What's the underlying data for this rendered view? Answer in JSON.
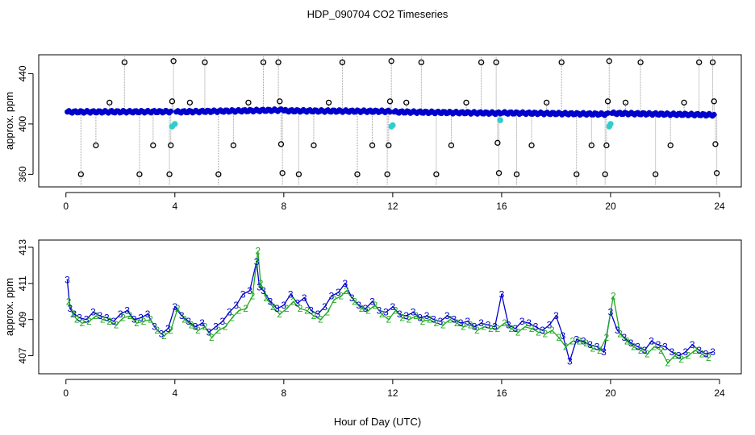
{
  "title": "HDP_090704  CO2 Timeseries",
  "xlabel": "Hour of Day (UTC)",
  "chart_data": [
    {
      "type": "scatter",
      "ylabel": "approx. ppm",
      "xlim": [
        -1,
        24.8
      ],
      "ylim": [
        350,
        455
      ],
      "xticks": [
        0,
        4,
        8,
        12,
        16,
        20,
        24
      ],
      "yticks": [
        360,
        400,
        440
      ],
      "grid": false,
      "colors": {
        "main": "#0000cc",
        "cal": "#33cccc",
        "outlier": "#000000",
        "drop": "#999999"
      },
      "main_series": [
        {
          "start": 0.05,
          "end": 3.85,
          "y0": 409.6,
          "y1": 409.8
        },
        {
          "start": 4.05,
          "end": 7.9,
          "y0": 409.6,
          "y1": 411.0
        },
        {
          "start": 8.0,
          "end": 11.9,
          "y0": 410.5,
          "y1": 410.0
        },
        {
          "start": 12.05,
          "end": 15.95,
          "y0": 409.6,
          "y1": 408.6
        },
        {
          "start": 16.05,
          "end": 19.9,
          "y0": 408.8,
          "y1": 407.8
        },
        {
          "start": 20.05,
          "end": 23.8,
          "y0": 408.5,
          "y1": 407.2
        }
      ],
      "cal_points": [
        {
          "x": 3.9,
          "y": 398
        },
        {
          "x": 4.0,
          "y": 400
        },
        {
          "x": 11.95,
          "y": 398
        },
        {
          "x": 12.0,
          "y": 399
        },
        {
          "x": 15.95,
          "y": 403
        },
        {
          "x": 19.95,
          "y": 398
        },
        {
          "x": 20.0,
          "y": 400
        }
      ],
      "outliers": [
        {
          "x": 0.55,
          "y": 360
        },
        {
          "x": 1.1,
          "y": 383
        },
        {
          "x": 1.6,
          "y": 417
        },
        {
          "x": 2.15,
          "y": 449
        },
        {
          "x": 2.7,
          "y": 360
        },
        {
          "x": 3.2,
          "y": 383
        },
        {
          "x": 3.8,
          "y": 360
        },
        {
          "x": 3.85,
          "y": 383
        },
        {
          "x": 3.9,
          "y": 418
        },
        {
          "x": 3.95,
          "y": 450
        },
        {
          "x": 4.55,
          "y": 417
        },
        {
          "x": 5.1,
          "y": 449
        },
        {
          "x": 5.6,
          "y": 360
        },
        {
          "x": 6.15,
          "y": 383
        },
        {
          "x": 6.7,
          "y": 417
        },
        {
          "x": 7.25,
          "y": 449
        },
        {
          "x": 7.8,
          "y": 449
        },
        {
          "x": 7.85,
          "y": 418
        },
        {
          "x": 7.9,
          "y": 384
        },
        {
          "x": 7.95,
          "y": 361
        },
        {
          "x": 8.55,
          "y": 360
        },
        {
          "x": 9.1,
          "y": 383
        },
        {
          "x": 9.65,
          "y": 417
        },
        {
          "x": 10.15,
          "y": 449
        },
        {
          "x": 10.7,
          "y": 360
        },
        {
          "x": 11.25,
          "y": 383
        },
        {
          "x": 11.8,
          "y": 360
        },
        {
          "x": 11.85,
          "y": 383
        },
        {
          "x": 11.9,
          "y": 418
        },
        {
          "x": 11.95,
          "y": 450
        },
        {
          "x": 12.5,
          "y": 417
        },
        {
          "x": 13.05,
          "y": 449
        },
        {
          "x": 13.6,
          "y": 360
        },
        {
          "x": 14.15,
          "y": 383
        },
        {
          "x": 14.7,
          "y": 417
        },
        {
          "x": 15.25,
          "y": 449
        },
        {
          "x": 15.8,
          "y": 449
        },
        {
          "x": 15.85,
          "y": 385
        },
        {
          "x": 15.9,
          "y": 361
        },
        {
          "x": 16.55,
          "y": 360
        },
        {
          "x": 17.1,
          "y": 383
        },
        {
          "x": 17.65,
          "y": 417
        },
        {
          "x": 18.2,
          "y": 449
        },
        {
          "x": 18.75,
          "y": 360
        },
        {
          "x": 19.3,
          "y": 383
        },
        {
          "x": 19.8,
          "y": 360
        },
        {
          "x": 19.85,
          "y": 383
        },
        {
          "x": 19.9,
          "y": 418
        },
        {
          "x": 19.95,
          "y": 450
        },
        {
          "x": 20.55,
          "y": 417
        },
        {
          "x": 21.1,
          "y": 449
        },
        {
          "x": 21.65,
          "y": 360
        },
        {
          "x": 22.2,
          "y": 383
        },
        {
          "x": 22.7,
          "y": 417
        },
        {
          "x": 23.25,
          "y": 449
        },
        {
          "x": 23.75,
          "y": 449
        },
        {
          "x": 23.8,
          "y": 418
        },
        {
          "x": 23.85,
          "y": 384
        },
        {
          "x": 23.9,
          "y": 361
        }
      ]
    },
    {
      "type": "line",
      "ylabel": "approx. ppm",
      "xlim": [
        -1,
        24.8
      ],
      "ylim": [
        406.0,
        413.4
      ],
      "xticks": [
        0,
        4,
        8,
        12,
        16,
        20,
        24
      ],
      "yticks": [
        407,
        409,
        411,
        413
      ],
      "grid": false,
      "series": [
        {
          "name": "3",
          "color": "#0000cc",
          "x": [
            0.05,
            0.15,
            0.3,
            0.5,
            0.75,
            1.0,
            1.25,
            1.5,
            1.75,
            2.0,
            2.25,
            2.5,
            2.75,
            3.0,
            3.25,
            3.5,
            3.75,
            4.0,
            4.25,
            4.5,
            4.75,
            5.0,
            5.25,
            5.5,
            5.75,
            6.0,
            6.25,
            6.5,
            6.75,
            7.0,
            7.1,
            7.25,
            7.5,
            7.75,
            8.0,
            8.25,
            8.5,
            8.75,
            9.0,
            9.25,
            9.5,
            9.75,
            10.0,
            10.25,
            10.5,
            10.75,
            11.0,
            11.25,
            11.5,
            11.75,
            12.0,
            12.25,
            12.5,
            12.75,
            13.0,
            13.25,
            13.5,
            13.75,
            14.0,
            14.25,
            14.5,
            14.75,
            15.0,
            15.25,
            15.5,
            15.75,
            16.0,
            16.25,
            16.5,
            16.75,
            17.0,
            17.25,
            17.5,
            17.75,
            18.0,
            18.25,
            18.5,
            18.75,
            19.0,
            19.25,
            19.5,
            19.75,
            20.0,
            20.25,
            20.5,
            20.75,
            21.0,
            21.25,
            21.5,
            21.75,
            22.0,
            22.25,
            22.5,
            22.75,
            23.0,
            23.25,
            23.5,
            23.75
          ],
          "y": [
            411.2,
            409.6,
            409.3,
            409.1,
            409.0,
            409.4,
            409.2,
            409.1,
            408.9,
            409.3,
            409.5,
            409.0,
            409.1,
            409.3,
            408.6,
            408.2,
            408.5,
            409.7,
            409.2,
            408.9,
            408.6,
            408.8,
            408.3,
            408.6,
            408.9,
            409.4,
            409.8,
            410.4,
            410.6,
            412.2,
            410.8,
            410.6,
            410.0,
            409.6,
            409.8,
            410.4,
            409.9,
            410.2,
            409.5,
            409.3,
            409.7,
            410.3,
            410.5,
            411.0,
            410.2,
            409.8,
            409.6,
            410.0,
            409.5,
            409.4,
            409.7,
            409.3,
            409.2,
            409.4,
            409.1,
            409.2,
            409.0,
            408.9,
            409.2,
            409.0,
            408.8,
            408.9,
            408.6,
            408.8,
            408.7,
            408.6,
            410.4,
            408.7,
            408.5,
            408.9,
            408.8,
            408.6,
            408.4,
            408.7,
            409.2,
            408.1,
            406.7,
            407.9,
            407.8,
            407.6,
            407.5,
            407.2,
            409.4,
            408.4,
            408.0,
            407.7,
            407.5,
            407.3,
            407.8,
            407.6,
            407.5,
            407.2,
            407.0,
            407.2,
            407.6,
            407.3,
            407.1,
            407.2
          ]
        },
        {
          "name": "2",
          "color": "#22aa22",
          "x": [
            0.1,
            0.25,
            0.4,
            0.6,
            0.85,
            1.1,
            1.35,
            1.6,
            1.85,
            2.1,
            2.35,
            2.6,
            2.85,
            3.1,
            3.35,
            3.6,
            3.85,
            4.1,
            4.35,
            4.6,
            4.85,
            5.1,
            5.35,
            5.6,
            5.85,
            6.1,
            6.35,
            6.6,
            6.85,
            7.05,
            7.15,
            7.35,
            7.6,
            7.85,
            8.1,
            8.35,
            8.6,
            8.85,
            9.1,
            9.35,
            9.6,
            9.85,
            10.1,
            10.3,
            10.6,
            10.85,
            11.1,
            11.35,
            11.6,
            11.85,
            12.1,
            12.35,
            12.6,
            12.85,
            13.1,
            13.35,
            13.6,
            13.85,
            14.1,
            14.35,
            14.6,
            14.85,
            15.1,
            15.35,
            15.6,
            15.85,
            16.1,
            16.35,
            16.6,
            16.85,
            17.1,
            17.35,
            17.6,
            17.85,
            18.1,
            18.35,
            18.6,
            18.85,
            19.1,
            19.35,
            19.6,
            19.85,
            20.1,
            20.35,
            20.6,
            20.85,
            21.1,
            21.35,
            21.6,
            21.85,
            22.1,
            22.35,
            22.6,
            22.85,
            23.1,
            23.35,
            23.6
          ],
          "y": [
            410.0,
            409.3,
            409.0,
            408.8,
            408.9,
            409.2,
            409.0,
            408.9,
            408.7,
            409.1,
            409.2,
            408.8,
            408.9,
            409.0,
            408.4,
            408.1,
            408.4,
            409.6,
            409.0,
            408.7,
            408.4,
            408.6,
            408.0,
            408.4,
            408.6,
            409.1,
            409.5,
            409.6,
            410.3,
            412.8,
            411.0,
            410.2,
            409.7,
            409.3,
            409.6,
            410.0,
            409.6,
            409.5,
            409.2,
            409.0,
            409.4,
            410.1,
            410.3,
            410.6,
            410.0,
            409.6,
            409.5,
            409.8,
            409.3,
            409.0,
            409.5,
            409.1,
            409.0,
            409.2,
            408.9,
            409.0,
            408.8,
            408.7,
            409.0,
            408.8,
            408.6,
            408.7,
            408.4,
            408.6,
            408.5,
            408.5,
            408.8,
            408.5,
            408.3,
            408.6,
            408.5,
            408.3,
            408.2,
            408.4,
            408.0,
            407.5,
            407.8,
            407.8,
            407.7,
            407.4,
            407.3,
            408.0,
            410.3,
            408.2,
            407.8,
            407.5,
            407.3,
            407.1,
            407.5,
            407.3,
            406.6,
            407.0,
            406.8,
            407.0,
            407.3,
            407.1,
            406.9
          ]
        }
      ]
    }
  ]
}
